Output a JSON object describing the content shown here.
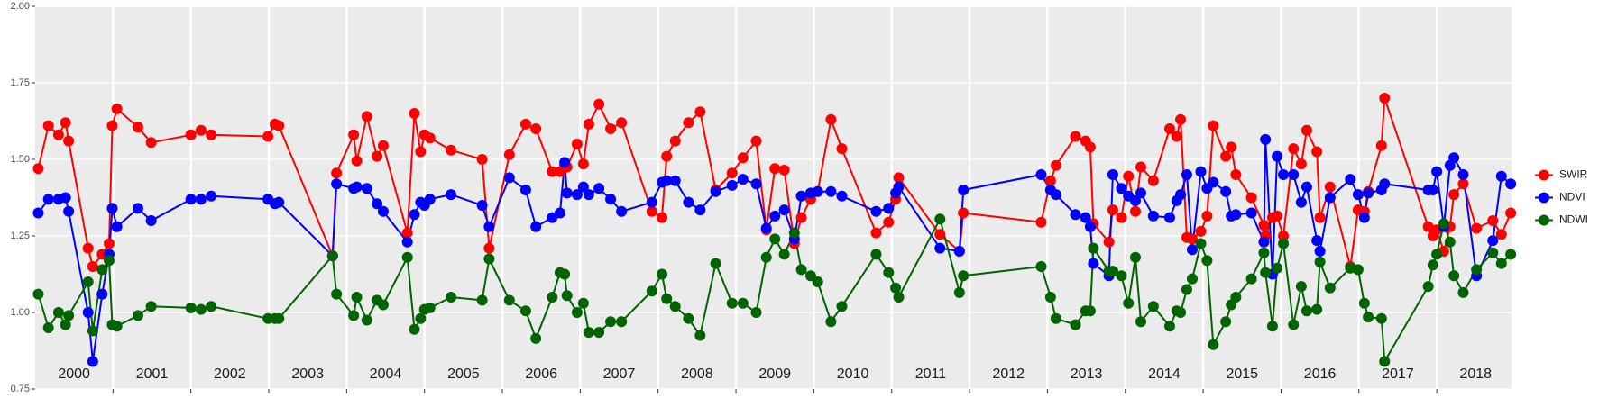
{
  "chart_data": {
    "type": "line",
    "x": [
      2000.04,
      2000.17,
      2000.3,
      2000.39,
      2000.43,
      2000.68,
      2000.74,
      2000.86,
      2000.95,
      2000.99,
      2001.05,
      2001.32,
      2001.49,
      2002.0,
      2002.13,
      2002.26,
      2002.99,
      2003.08,
      2003.13,
      2003.82,
      2003.87,
      2004.09,
      2004.13,
      2004.26,
      2004.39,
      2004.47,
      2004.78,
      2004.87,
      2004.95,
      2005.0,
      2005.07,
      2005.34,
      2005.74,
      2005.83,
      2006.09,
      2006.3,
      2006.43,
      2006.64,
      2006.74,
      2006.8,
      2006.83,
      2006.96,
      2007.04,
      2007.11,
      2007.24,
      2007.39,
      2007.53,
      2007.92,
      2008.05,
      2008.11,
      2008.22,
      2008.39,
      2008.54,
      2008.74,
      2008.95,
      2009.09,
      2009.26,
      2009.39,
      2009.5,
      2009.62,
      2009.75,
      2009.84,
      2009.96,
      2010.05,
      2010.22,
      2010.36,
      2010.8,
      2010.96,
      2011.05,
      2011.09,
      2011.62,
      2011.87,
      2011.92,
      2012.92,
      2013.04,
      2013.11,
      2013.36,
      2013.49,
      2013.55,
      2013.59,
      2013.79,
      2013.84,
      2013.95,
      2014.04,
      2014.13,
      2014.2,
      2014.36,
      2014.57,
      2014.66,
      2014.71,
      2014.79,
      2014.86,
      2014.97,
      2015.05,
      2015.13,
      2015.29,
      2015.36,
      2015.42,
      2015.62,
      2015.78,
      2015.8,
      2015.89,
      2015.95,
      2016.03,
      2016.16,
      2016.26,
      2016.33,
      2016.46,
      2016.5,
      2016.63,
      2016.89,
      2016.99,
      2017.07,
      2017.12,
      2017.29,
      2017.33,
      2017.89,
      2017.95,
      2018.0,
      2018.09,
      2018.17,
      2018.22,
      2018.34,
      2018.51,
      2018.72,
      2018.83,
      2018.95
    ],
    "series": [
      {
        "name": "SWIR",
        "color": "#ff0000",
        "values": [
          1.47,
          1.61,
          1.58,
          1.62,
          1.56,
          1.21,
          1.15,
          1.19,
          1.225,
          1.61,
          1.665,
          1.605,
          1.555,
          1.58,
          1.595,
          1.58,
          1.575,
          1.615,
          1.61,
          1.185,
          1.455,
          1.58,
          1.495,
          1.64,
          1.51,
          1.545,
          1.26,
          1.65,
          1.525,
          1.58,
          1.57,
          1.53,
          1.5,
          1.21,
          1.515,
          1.615,
          1.6,
          1.46,
          1.46,
          1.48,
          1.475,
          1.55,
          1.485,
          1.615,
          1.68,
          1.6,
          1.62,
          1.33,
          1.31,
          1.51,
          1.56,
          1.62,
          1.655,
          1.4,
          1.455,
          1.505,
          1.56,
          1.27,
          1.47,
          1.465,
          1.225,
          1.31,
          1.37,
          1.395,
          1.63,
          1.535,
          1.26,
          1.295,
          1.37,
          1.44,
          1.255,
          1.2,
          1.325,
          1.295,
          1.43,
          1.48,
          1.575,
          1.56,
          1.54,
          1.29,
          1.23,
          1.335,
          1.31,
          1.445,
          1.33,
          1.475,
          1.43,
          1.6,
          1.575,
          1.63,
          1.245,
          1.24,
          1.265,
          1.315,
          1.61,
          1.51,
          1.54,
          1.45,
          1.375,
          1.285,
          1.25,
          1.31,
          1.315,
          1.25,
          1.535,
          1.485,
          1.595,
          1.525,
          1.31,
          1.41,
          1.15,
          1.335,
          1.33,
          1.395,
          1.545,
          1.7,
          1.28,
          1.25,
          1.27,
          1.2,
          1.28,
          1.385,
          1.42,
          1.275,
          1.3,
          1.255,
          1.325
        ]
      },
      {
        "name": "NDVI",
        "color": "#0000ff",
        "values": [
          1.325,
          1.37,
          1.37,
          1.375,
          1.33,
          1.0,
          0.84,
          1.06,
          1.19,
          1.34,
          1.28,
          1.34,
          1.3,
          1.37,
          1.37,
          1.38,
          1.37,
          1.355,
          1.36,
          1.185,
          1.42,
          1.405,
          1.41,
          1.405,
          1.355,
          1.33,
          1.23,
          1.32,
          1.36,
          1.35,
          1.37,
          1.385,
          1.35,
          1.28,
          1.44,
          1.4,
          1.28,
          1.31,
          1.325,
          1.49,
          1.39,
          1.385,
          1.41,
          1.385,
          1.405,
          1.37,
          1.33,
          1.36,
          1.425,
          1.43,
          1.43,
          1.36,
          1.335,
          1.395,
          1.415,
          1.435,
          1.42,
          1.275,
          1.315,
          1.335,
          1.24,
          1.38,
          1.39,
          1.395,
          1.395,
          1.38,
          1.33,
          1.34,
          1.39,
          1.41,
          1.21,
          1.2,
          1.4,
          1.45,
          1.4,
          1.385,
          1.32,
          1.31,
          1.28,
          1.16,
          1.12,
          1.45,
          1.405,
          1.38,
          1.365,
          1.39,
          1.315,
          1.31,
          1.365,
          1.385,
          1.45,
          1.205,
          1.46,
          1.405,
          1.425,
          1.395,
          1.315,
          1.32,
          1.325,
          1.23,
          1.565,
          1.125,
          1.51,
          1.45,
          1.45,
          1.36,
          1.41,
          1.235,
          1.2,
          1.375,
          1.435,
          1.385,
          1.31,
          1.39,
          1.4,
          1.42,
          1.4,
          1.4,
          1.46,
          1.28,
          1.48,
          1.505,
          1.45,
          1.12,
          1.235,
          1.445,
          1.42
        ]
      },
      {
        "name": "NDWI",
        "color": "#006400",
        "values": [
          1.06,
          0.95,
          1.0,
          0.96,
          0.99,
          1.1,
          0.94,
          1.14,
          1.17,
          0.96,
          0.955,
          0.99,
          1.02,
          1.015,
          1.01,
          1.02,
          0.98,
          0.98,
          0.98,
          1.185,
          1.06,
          0.99,
          1.05,
          0.975,
          1.04,
          1.025,
          1.18,
          0.945,
          0.98,
          1.01,
          1.015,
          1.05,
          1.04,
          1.175,
          1.04,
          1.005,
          0.915,
          1.05,
          1.13,
          1.125,
          1.055,
          1.0,
          1.03,
          0.935,
          0.935,
          0.97,
          0.97,
          1.07,
          1.125,
          1.045,
          1.02,
          0.98,
          0.925,
          1.16,
          1.03,
          1.03,
          1.0,
          1.18,
          1.24,
          1.19,
          1.26,
          1.14,
          1.12,
          1.1,
          0.97,
          1.02,
          1.19,
          1.13,
          1.08,
          1.05,
          1.305,
          1.065,
          1.12,
          1.15,
          1.05,
          0.98,
          0.96,
          1.005,
          1.005,
          1.21,
          1.135,
          1.135,
          1.12,
          1.03,
          1.18,
          0.97,
          1.02,
          0.955,
          1.005,
          1.0,
          1.075,
          1.11,
          1.225,
          1.17,
          0.895,
          0.97,
          1.025,
          1.05,
          1.11,
          1.195,
          1.13,
          0.955,
          1.145,
          1.225,
          0.96,
          1.085,
          1.005,
          1.01,
          1.165,
          1.08,
          1.145,
          1.14,
          1.03,
          0.985,
          0.98,
          0.84,
          1.085,
          1.155,
          1.19,
          1.29,
          1.23,
          1.12,
          1.065,
          1.14,
          1.195,
          1.16,
          1.19
        ]
      }
    ],
    "xlim": [
      2000,
      2018.96
    ],
    "xticks": [
      {
        "value": 2000.5,
        "label": "2000"
      },
      {
        "value": 2001.5,
        "label": "2001"
      },
      {
        "value": 2002.5,
        "label": "2002"
      },
      {
        "value": 2003.5,
        "label": "2003"
      },
      {
        "value": 2004.5,
        "label": "2004"
      },
      {
        "value": 2005.5,
        "label": "2005"
      },
      {
        "value": 2006.5,
        "label": "2006"
      },
      {
        "value": 2007.5,
        "label": "2007"
      },
      {
        "value": 2008.5,
        "label": "2008"
      },
      {
        "value": 2009.5,
        "label": "2009"
      },
      {
        "value": 2010.5,
        "label": "2010"
      },
      {
        "value": 2011.5,
        "label": "2011"
      },
      {
        "value": 2012.5,
        "label": "2012"
      },
      {
        "value": 2013.5,
        "label": "2013"
      },
      {
        "value": 2014.5,
        "label": "2014"
      },
      {
        "value": 2015.5,
        "label": "2015"
      },
      {
        "value": 2016.5,
        "label": "2016"
      },
      {
        "value": 2017.5,
        "label": "2017"
      },
      {
        "value": 2018.5,
        "label": "2018"
      }
    ],
    "xgrid": [
      2001,
      2002,
      2003,
      2004,
      2005,
      2006,
      2007,
      2008,
      2009,
      2010,
      2011,
      2012,
      2013,
      2014,
      2015,
      2016,
      2017,
      2018
    ],
    "ylim": [
      0.75,
      2.0
    ],
    "yticks": [
      0.75,
      {
        "value": 1.0,
        "label": "1.00"
      },
      1.25,
      {
        "value": 1.5,
        "label": "1.50"
      },
      1.75,
      {
        "value": 2.0,
        "label": "2.00"
      }
    ],
    "grid": true,
    "legend": "right"
  }
}
